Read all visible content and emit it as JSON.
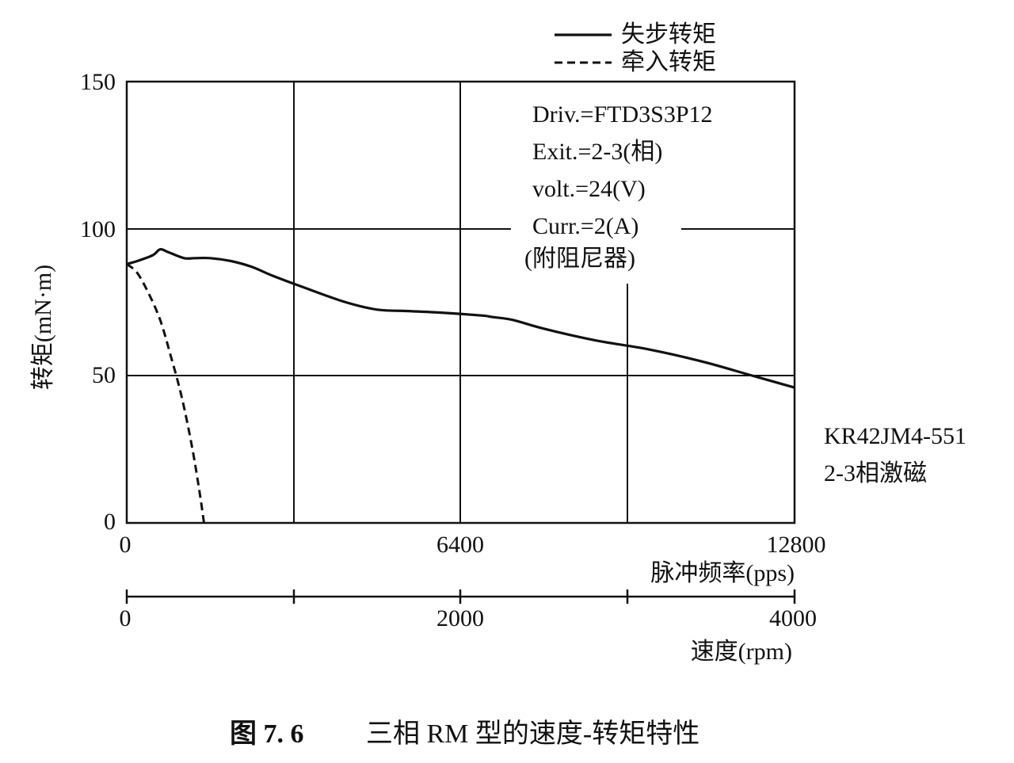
{
  "chart_data": {
    "type": "line",
    "xlabel": "脉冲频率(pps)",
    "x_ticks": [
      "0",
      "6400",
      "12800"
    ],
    "xlim": [
      0,
      12800
    ],
    "secondary_axis": {
      "label": "速度(rpm)",
      "ticks": [
        "0",
        "2000",
        "4000"
      ],
      "range": [
        0,
        4000
      ]
    },
    "ylabel": "转矩(mN·m)",
    "y_ticks": [
      "0",
      "50",
      "100",
      "150"
    ],
    "ylim": [
      0,
      150
    ],
    "grid": true,
    "legend": "top-right",
    "series": [
      {
        "name": "失步转矩",
        "style": "solid",
        "points": [
          [
            0,
            88
          ],
          [
            200,
            89
          ],
          [
            500,
            91
          ],
          [
            640,
            93
          ],
          [
            800,
            92
          ],
          [
            1100,
            90
          ],
          [
            1300,
            90
          ],
          [
            1600,
            90
          ],
          [
            2000,
            89
          ],
          [
            2400,
            87
          ],
          [
            2800,
            84
          ],
          [
            3400,
            80
          ],
          [
            4200,
            75
          ],
          [
            4800,
            72.5
          ],
          [
            5400,
            72
          ],
          [
            6000,
            71.5
          ],
          [
            6800,
            70.5
          ],
          [
            7000,
            70
          ],
          [
            7400,
            69
          ],
          [
            8000,
            66
          ],
          [
            9000,
            62
          ],
          [
            10000,
            59
          ],
          [
            11000,
            55
          ],
          [
            12000,
            50
          ],
          [
            12800,
            46
          ]
        ]
      },
      {
        "name": "牵入转矩",
        "style": "dashed",
        "points": [
          [
            0,
            88
          ],
          [
            200,
            85
          ],
          [
            420,
            78
          ],
          [
            640,
            69
          ],
          [
            840,
            57
          ],
          [
            1050,
            43
          ],
          [
            1250,
            26
          ],
          [
            1400,
            10
          ],
          [
            1480,
            0
          ]
        ]
      }
    ],
    "annotations": [
      "Driv.=FTD3S3P12",
      "Exit.=2-3(相)",
      "volt.=24(V)",
      "Curr.=2(A)",
      "(附阻尼器)"
    ],
    "side_labels": [
      "KR42JM4-551",
      "2-3相激磁"
    ]
  },
  "caption": {
    "number": "图 7. 6",
    "text": "三相 RM 型的速度-转矩特性"
  }
}
